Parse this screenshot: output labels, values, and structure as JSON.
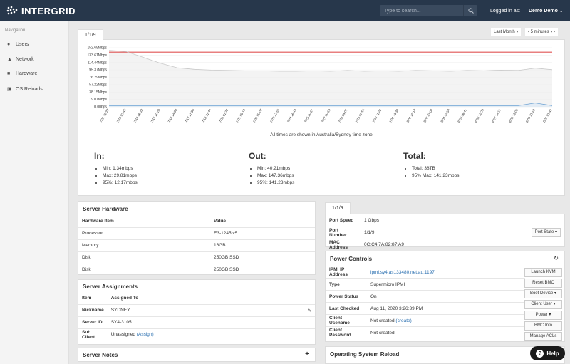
{
  "header": {
    "brand": "INTERGRID",
    "search_placeholder": "Type to search...",
    "logged_in_label": "Logged in as:",
    "user_name": "Demo Demo"
  },
  "sidebar": {
    "title": "Navigation",
    "items": [
      {
        "label": "Users",
        "icon": "user-icon"
      },
      {
        "label": "Network",
        "icon": "network-icon"
      },
      {
        "label": "Hardware",
        "icon": "hardware-icon"
      },
      {
        "label": "OS Reloads",
        "icon": "reload-icon"
      }
    ]
  },
  "graph_panel": {
    "tab_label": "1/1/9",
    "range_select": "Last Month",
    "interval_select": "5 minutes",
    "timezone_note": "All times are shown in Australia/Sydney time zone"
  },
  "chart_data": {
    "type": "line",
    "y_ticks": [
      "152.69Mbps",
      "133.61Mbps",
      "114.44Mbps",
      "95.37Mbps",
      "76.29Mbps",
      "57.22Mbps",
      "38.15Mbps",
      "19.07Mbps",
      "0.00bps"
    ],
    "x_ticks": [
      "7/11 22:37",
      "7/13 02:45",
      "7/14 06:32",
      "7/15 10:20",
      "7/16 14:08",
      "7/17 17:56",
      "7/18 21:44",
      "7/20 01:32",
      "7/21 05:19",
      "7/22 09:07",
      "7/23 12:55",
      "7/24 16:43",
      "7/25 20:31",
      "7/27 00:19",
      "7/28 04:07",
      "7/29 07:54",
      "7/30 11:42",
      "7/31 15:30",
      "8/01 19:18",
      "8/02 23:06",
      "8/04 02:54",
      "8/05 06:41",
      "8/06 10:29",
      "8/07 14:17",
      "8/08 18:05",
      "8/09 21:53",
      "8/11 01:41"
    ],
    "ylim": [
      0,
      152.69
    ],
    "series": [
      {
        "color": "#e05555",
        "values": [
          141.2,
          141.2,
          141.2,
          141.2,
          141.2,
          141.2,
          141.2,
          141.2,
          141.2,
          141.2,
          141.2,
          141.2,
          141.2,
          141.2,
          141.2,
          141.2,
          141.2,
          141.2,
          141.2,
          141.2,
          141.2,
          141.2,
          141.2,
          141.2,
          141.2,
          141.2,
          141.2
        ]
      },
      {
        "color": "#c8c8c8",
        "values": [
          146,
          143,
          128,
          113,
          101,
          97,
          95,
          94,
          93,
          93,
          92,
          92,
          93,
          92,
          94,
          92,
          93,
          92,
          94,
          93,
          92,
          94,
          93,
          95,
          94,
          100,
          96
        ]
      },
      {
        "color": "#6fa3d3",
        "values": [
          3,
          3,
          3,
          3,
          3,
          3,
          3,
          3,
          3,
          3,
          3,
          3,
          3,
          3,
          3,
          3,
          3,
          3,
          3,
          3,
          3,
          3,
          3,
          3,
          3,
          10,
          3
        ]
      }
    ]
  },
  "stats": {
    "in": {
      "title": "In:",
      "items": [
        "Min: 1.34mbps",
        "Max: 29.81mbps",
        "95%: 12.17mbps"
      ]
    },
    "out": {
      "title": "Out:",
      "items": [
        "Min: 40.21mbps",
        "Max: 147.36mbps",
        "95%: 141.23mbps"
      ]
    },
    "total": {
      "title": "Total:",
      "items": [
        "Total: 38TB",
        "95% Max: 141.23mbps"
      ]
    }
  },
  "server_hardware": {
    "title": "Server Hardware",
    "col_item": "Hardware Item",
    "col_value": "Value",
    "rows": [
      {
        "item": "Processor",
        "value": "E3-1245 v5"
      },
      {
        "item": "Memory",
        "value": "16GB"
      },
      {
        "item": "Disk",
        "value": "250GB SSD"
      },
      {
        "item": "Disk",
        "value": "250GB SSD"
      }
    ]
  },
  "server_assignments": {
    "title": "Server Assignments",
    "col_item": "Item",
    "col_assigned": "Assigned To",
    "nickname_label": "Nickname",
    "nickname_value": "SYDNEY",
    "server_id_label": "Server ID",
    "server_id_value": "SY4-3105",
    "sub_client_label": "Sub Client",
    "sub_client_value": "Unassigned",
    "assign_link": "(Assign)"
  },
  "server_notes": {
    "title": "Server Notes",
    "add": "+"
  },
  "port_panel": {
    "tab_label": "1/1/9",
    "port_speed_label": "Port Speed",
    "port_speed_value": "1 Gbps",
    "port_number_label": "Port Number",
    "port_number_value": "1/1/9",
    "port_state_button": "Port State",
    "mac_label": "MAC Address",
    "mac_value": "0C:C4:7A:82:87:A9"
  },
  "power_controls": {
    "title": "Power Controls",
    "ipmi_label": "IPMI IP Address",
    "ipmi_value": "ipmi.sy4.as133480.net.au:1197",
    "type_label": "Type",
    "type_value": "Supermicro IPMI",
    "status_label": "Power Status",
    "status_value": "On",
    "checked_label": "Last Checked",
    "checked_value": "Aug 11, 2020 3:26:39 PM",
    "username_label": "Client Usename",
    "username_value": "Not created",
    "create_link": "(create)",
    "password_label": "Client Password",
    "password_value": "Not created",
    "buttons": [
      "Launch KVM",
      "Reset BMC",
      "Boot Device",
      "Client User",
      "Power",
      "BMC Info",
      "Manage ACLs"
    ]
  },
  "os_reload": {
    "title": "Operating System Reload"
  },
  "help": {
    "label": "Help"
  }
}
